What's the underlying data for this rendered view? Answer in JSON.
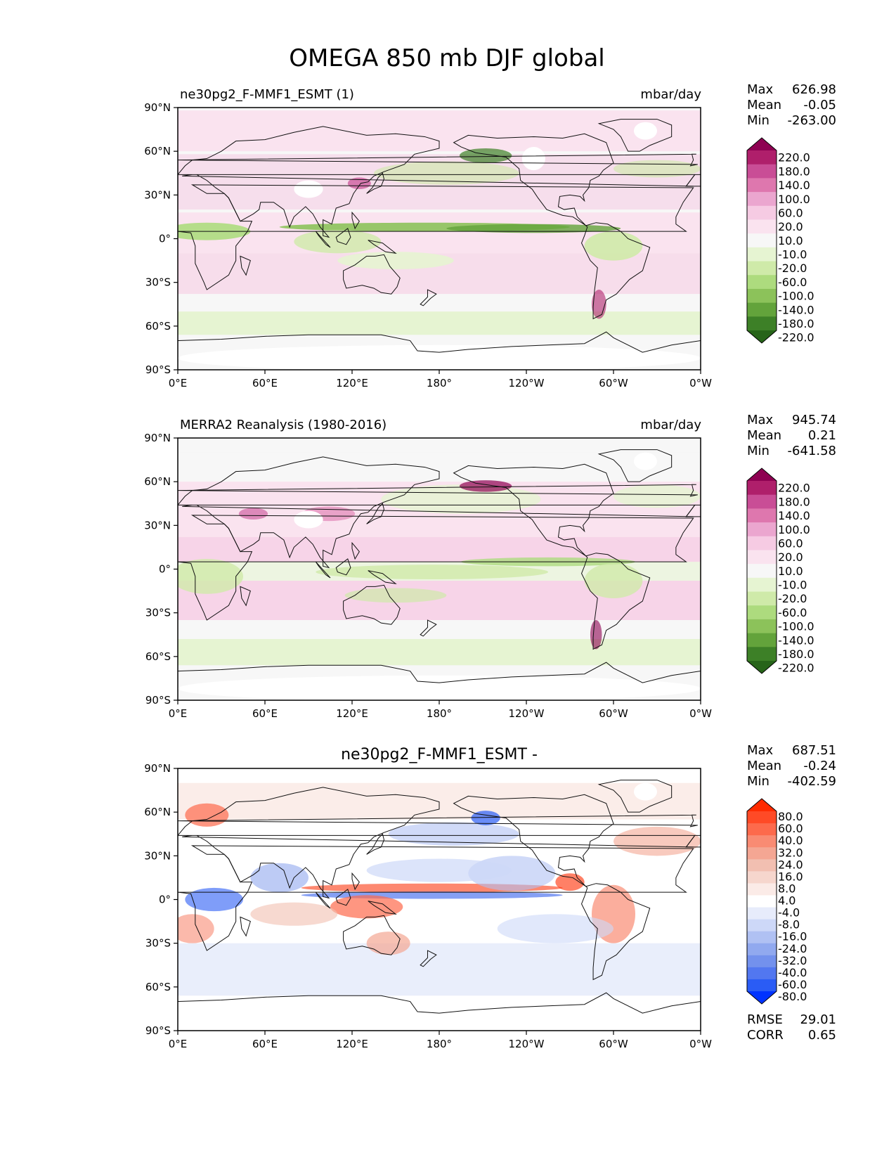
{
  "figure_title": "OMEGA 850 mb DJF global",
  "x_ticks": [
    "0°E",
    "60°E",
    "120°E",
    "180°",
    "120°W",
    "60°W",
    "0°W"
  ],
  "y_ticks": [
    "90°N",
    "60°N",
    "30°N",
    "0°",
    "30°S",
    "60°S",
    "90°S"
  ],
  "panels": [
    {
      "id": "test",
      "left_title": "ne30pg2_F-MMF1_ESMT (1)",
      "center_title": "",
      "units": "mbar/day",
      "stats": [
        {
          "label": "Max",
          "value": "626.98"
        },
        {
          "label": "Mean",
          "value": "-0.05"
        },
        {
          "label": "Min",
          "value": "-263.00"
        }
      ],
      "extra_stats": [],
      "colorbar_labels": [
        "220.0",
        "180.0",
        "140.0",
        "100.0",
        "60.0",
        "20.0",
        "10.0",
        "-10.0",
        "-20.0",
        "-60.0",
        "-100.0",
        "-140.0",
        "-180.0",
        "-220.0"
      ],
      "colorbar_colors": [
        "#8e0152",
        "#af1f6b",
        "#c94d96",
        "#de77ae",
        "#eba6cf",
        "#f6cbe3",
        "#fae3ef",
        "#f7f7f7",
        "#e6f4d2",
        "#cfeaa9",
        "#addb7e",
        "#8cc25a",
        "#63a33b",
        "#3d8027",
        "#276419"
      ]
    },
    {
      "id": "ref",
      "left_title": "MERRA2 Reanalysis (1980-2016)",
      "center_title": "",
      "units": "mbar/day",
      "stats": [
        {
          "label": "Max",
          "value": "945.74"
        },
        {
          "label": "Mean",
          "value": "0.21"
        },
        {
          "label": "Min",
          "value": "-641.58"
        }
      ],
      "extra_stats": [],
      "colorbar_labels": [
        "220.0",
        "180.0",
        "140.0",
        "100.0",
        "60.0",
        "20.0",
        "10.0",
        "-10.0",
        "-20.0",
        "-60.0",
        "-100.0",
        "-140.0",
        "-180.0",
        "-220.0"
      ],
      "colorbar_colors": [
        "#8e0152",
        "#af1f6b",
        "#c94d96",
        "#de77ae",
        "#eba6cf",
        "#f6cbe3",
        "#fae3ef",
        "#f7f7f7",
        "#e6f4d2",
        "#cfeaa9",
        "#addb7e",
        "#8cc25a",
        "#63a33b",
        "#3d8027",
        "#276419"
      ]
    },
    {
      "id": "diff",
      "left_title": "",
      "center_title": "ne30pg2_F-MMF1_ESMT -",
      "units": "",
      "stats": [
        {
          "label": "Max",
          "value": "687.51"
        },
        {
          "label": "Mean",
          "value": "-0.24"
        },
        {
          "label": "Min",
          "value": "-402.59"
        }
      ],
      "extra_stats": [
        {
          "label": "RMSE",
          "value": "29.01"
        },
        {
          "label": "CORR",
          "value": "0.65"
        }
      ],
      "colorbar_labels": [
        "80.0",
        "60.0",
        "40.0",
        "32.0",
        "24.0",
        "16.0",
        "8.0",
        "4.0",
        "-4.0",
        "-8.0",
        "-16.0",
        "-24.0",
        "-32.0",
        "-40.0",
        "-60.0",
        "-80.0"
      ],
      "colorbar_colors": [
        "#ff2b00",
        "#ff4a26",
        "#fd6a4c",
        "#f98b73",
        "#f4a693",
        "#f2bfb1",
        "#f6d6cd",
        "#fbebe7",
        "#ffffff",
        "#e7ecfb",
        "#cdd8f8",
        "#b0c1f3",
        "#91a9ef",
        "#7391ed",
        "#5277f0",
        "#2a5cf5",
        "#0033ff"
      ]
    }
  ],
  "chart_data": [
    {
      "type": "heatmap",
      "title": "ne30pg2_F-MMF1_ESMT (1)",
      "units": "mbar/day",
      "xlim": [
        0,
        360
      ],
      "ylim": [
        -90,
        90
      ],
      "max": 626.98,
      "mean": -0.05,
      "min": -263.0,
      "levels": [
        -220,
        -180,
        -140,
        -100,
        -60,
        -20,
        -10,
        10,
        20,
        60,
        100,
        140,
        180,
        220
      ]
    },
    {
      "type": "heatmap",
      "title": "MERRA2 Reanalysis (1980-2016)",
      "units": "mbar/day",
      "xlim": [
        0,
        360
      ],
      "ylim": [
        -90,
        90
      ],
      "max": 945.74,
      "mean": 0.21,
      "min": -641.58,
      "levels": [
        -220,
        -180,
        -140,
        -100,
        -60,
        -20,
        -10,
        10,
        20,
        60,
        100,
        140,
        180,
        220
      ]
    },
    {
      "type": "heatmap",
      "title": "ne30pg2_F-MMF1_ESMT -",
      "xlim": [
        0,
        360
      ],
      "ylim": [
        -90,
        90
      ],
      "max": 687.51,
      "mean": -0.24,
      "min": -402.59,
      "rmse": 29.01,
      "corr": 0.65,
      "levels": [
        -80,
        -60,
        -40,
        -32,
        -24,
        -16,
        -8,
        -4,
        4,
        8,
        16,
        24,
        32,
        40,
        60,
        80
      ]
    }
  ]
}
